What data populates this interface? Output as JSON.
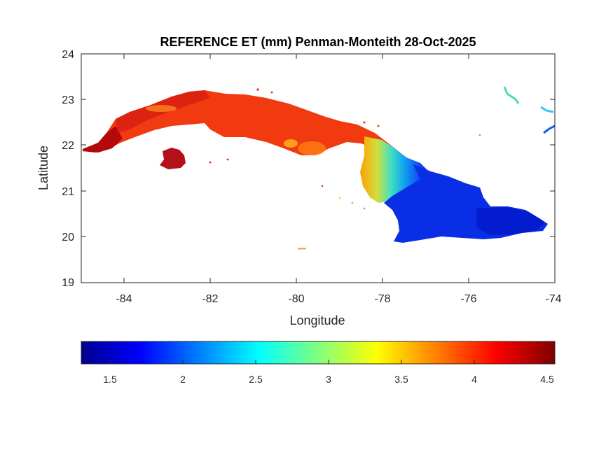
{
  "title": "REFERENCE ET (mm) Penman-Monteith 28-Oct-2025",
  "axes": {
    "xlabel": "Longitude",
    "ylabel": "Latitude",
    "xlim": [
      -85,
      -74
    ],
    "ylim": [
      19,
      24
    ],
    "xticks": [
      -84,
      -82,
      -80,
      -78,
      -76,
      -74
    ],
    "yticks": [
      19,
      20,
      21,
      22,
      23,
      24
    ],
    "xtick_labels": [
      "-84",
      "-82",
      "-80",
      "-78",
      "-76",
      "-74"
    ],
    "ytick_labels": [
      "19",
      "20",
      "21",
      "22",
      "23",
      "24"
    ]
  },
  "colorbar": {
    "colormap": "jet",
    "range": [
      1.3,
      4.55
    ],
    "ticks": [
      1.5,
      2,
      2.5,
      3,
      3.5,
      4,
      4.5
    ],
    "tick_labels": [
      "1.5",
      "2",
      "2.5",
      "3",
      "3.5",
      "4",
      "4.5"
    ],
    "orientation": "horizontal",
    "placement": "below-map"
  },
  "chart_data": {
    "type": "heatmap",
    "title": "REFERENCE ET (mm) Penman-Monteith 28-Oct-2025",
    "xlabel": "Longitude",
    "ylabel": "Latitude",
    "xlim": [
      -85,
      -74
    ],
    "ylim": [
      19,
      24
    ],
    "value_range": [
      1.3,
      4.55
    ],
    "regions": [
      {
        "longitude_range": [
          -85.0,
          -83.5
        ],
        "latitude_range": [
          21.8,
          22.6
        ],
        "et_mm": 4.4
      },
      {
        "longitude_range": [
          -83.5,
          -81.0
        ],
        "latitude_range": [
          22.1,
          23.2
        ],
        "et_mm": 4.1
      },
      {
        "longitude_range": [
          -83.2,
          -82.5
        ],
        "latitude_range": [
          21.4,
          21.9
        ],
        "et_mm": 4.5
      },
      {
        "longitude_range": [
          -81.0,
          -79.0
        ],
        "latitude_range": [
          21.6,
          23.1
        ],
        "et_mm": 4.0
      },
      {
        "longitude_range": [
          -79.0,
          -78.2
        ],
        "latitude_range": [
          21.3,
          22.6
        ],
        "et_mm": 3.9
      },
      {
        "longitude_range": [
          -78.2,
          -77.5
        ],
        "latitude_range": [
          20.7,
          22.1
        ],
        "et_mm": 3.0
      },
      {
        "longitude_range": [
          -77.5,
          -77.0
        ],
        "latitude_range": [
          20.6,
          21.5
        ],
        "et_mm": 2.4
      },
      {
        "longitude_range": [
          -77.0,
          -74.1
        ],
        "latitude_range": [
          19.8,
          21.2
        ],
        "et_mm": 1.8
      }
    ],
    "features": [
      {
        "name": "Isla de la Juventud",
        "longitude": -82.8,
        "latitude": 21.7,
        "et_mm": 4.5
      },
      {
        "name": "Pinar del Rio west tip",
        "longitude": -84.8,
        "latitude": 21.9,
        "et_mm": 4.55
      },
      {
        "name": "Guantanamo east tip",
        "longitude": -74.2,
        "latitude": 20.2,
        "et_mm": 1.6
      },
      {
        "name": "Northern cays",
        "longitude": -75.0,
        "latitude": 23.1,
        "et_mm": 2.6
      }
    ]
  }
}
